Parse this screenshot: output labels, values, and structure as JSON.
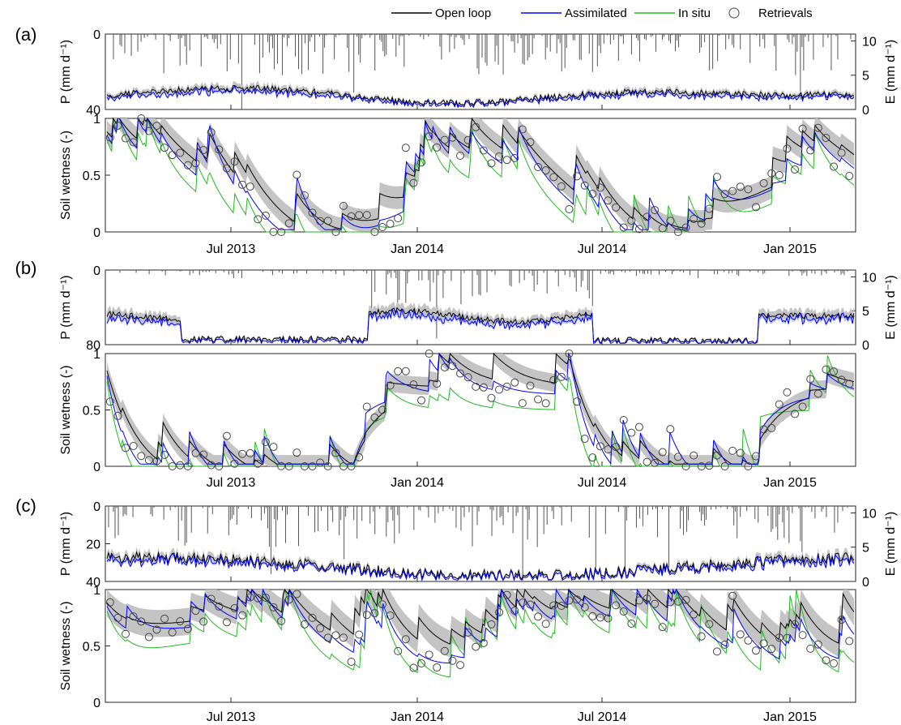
{
  "colors": {
    "open_loop": "#000000",
    "assimilated": "#0000ff",
    "in_situ": "#22bb22",
    "retrievals": "#444444",
    "spread": "#c4c4c4",
    "assim_spread": "#b8bfe8",
    "precip": "#555555"
  },
  "legend": {
    "items": [
      {
        "key": "open_loop",
        "label": "Open loop",
        "marker": "line"
      },
      {
        "key": "assimilated",
        "label": "Assimilated",
        "marker": "line"
      },
      {
        "key": "in_situ",
        "label": "In situ",
        "marker": "line"
      },
      {
        "key": "retrievals",
        "label": "Retrievals",
        "marker": "circle"
      }
    ]
  },
  "x_ticks": [
    "Jul 2013",
    "Jan 2014",
    "Jul 2014",
    "Jan 2015"
  ],
  "chart_data": [
    {
      "type": "line",
      "panel": "(a)",
      "part": "top",
      "ylabel_left": "P (mm d⁻¹)",
      "ylabel_right": "E (mm d⁻¹)",
      "left_ticks": [
        "0",
        "40"
      ],
      "right_ticks": [
        "0",
        "5",
        "10"
      ],
      "ylim_left": [
        40,
        0
      ],
      "ylim_right": [
        0,
        11
      ],
      "grid": false
    },
    {
      "type": "line",
      "panel": "(a)",
      "part": "bottom",
      "ylabel": "Soil wetness (-)",
      "y_ticks": [
        "0",
        "0.5",
        "1"
      ],
      "ylim": [
        0,
        1
      ],
      "grid": false,
      "xlabels_shown": true
    },
    {
      "type": "line",
      "panel": "(b)",
      "part": "top",
      "ylabel_left": "P (mm d⁻¹)",
      "ylabel_right": "E (mm d⁻¹)",
      "left_ticks": [
        "0",
        "80"
      ],
      "right_ticks": [
        "0",
        "5",
        "10"
      ],
      "ylim_left": [
        80,
        0
      ],
      "ylim_right": [
        0,
        11
      ],
      "grid": false
    },
    {
      "type": "line",
      "panel": "(b)",
      "part": "bottom",
      "ylabel": "Soil wetness (-)",
      "y_ticks": [
        "0",
        "0.5",
        "1"
      ],
      "ylim": [
        0,
        1
      ],
      "grid": false,
      "xlabels_shown": true
    },
    {
      "type": "line",
      "panel": "(c)",
      "part": "top",
      "ylabel_left": "P (mm d⁻¹)",
      "ylabel_right": "E (mm d⁻¹)",
      "left_ticks": [
        "0",
        "20",
        "40"
      ],
      "right_ticks": [
        "0",
        "5",
        "10"
      ],
      "ylim_left": [
        40,
        0
      ],
      "ylim_right": [
        0,
        11
      ],
      "grid": false
    },
    {
      "type": "line",
      "panel": "(c)",
      "part": "bottom",
      "ylabel": "Soil wetness (-)",
      "y_ticks": [
        "0",
        "0.5",
        "1"
      ],
      "ylim": [
        0,
        1
      ],
      "grid": false,
      "xlabels_shown": true
    }
  ]
}
